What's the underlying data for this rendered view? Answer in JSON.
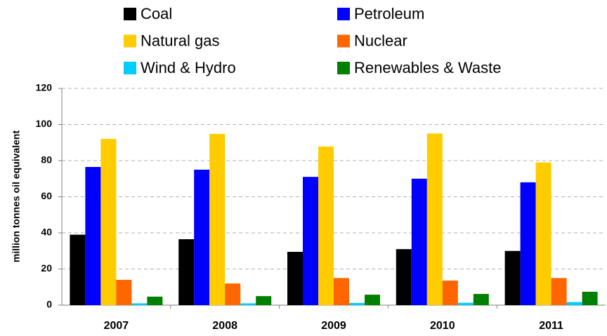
{
  "chart_data": {
    "type": "bar",
    "y_label": "million tonnes oil equivalent",
    "categories": [
      "2007",
      "2008",
      "2009",
      "2010",
      "2011"
    ],
    "series": [
      {
        "name": "Coal",
        "color": "#000000",
        "values": [
          39,
          36.5,
          29.5,
          31,
          30
        ]
      },
      {
        "name": "Petroleum",
        "color": "#0000ff",
        "values": [
          76.5,
          75,
          71,
          70,
          68
        ]
      },
      {
        "name": "Natural gas",
        "color": "#ffcc00",
        "values": [
          92,
          94.8,
          87.8,
          95,
          79
        ]
      },
      {
        "name": "Nuclear",
        "color": "#ff6600",
        "values": [
          14,
          12,
          15,
          13.6,
          15
        ]
      },
      {
        "name": "Wind & Hydro",
        "color": "#00ccff",
        "values": [
          1,
          1,
          1.2,
          1.3,
          1.7
        ]
      },
      {
        "name": "Renewables & Waste",
        "color": "#008000",
        "values": [
          4.7,
          5,
          5.8,
          6.2,
          7.4
        ]
      }
    ],
    "ylim": [
      0,
      120
    ],
    "yticks": [
      0,
      20,
      40,
      60,
      80,
      100,
      120
    ],
    "grid": true
  }
}
